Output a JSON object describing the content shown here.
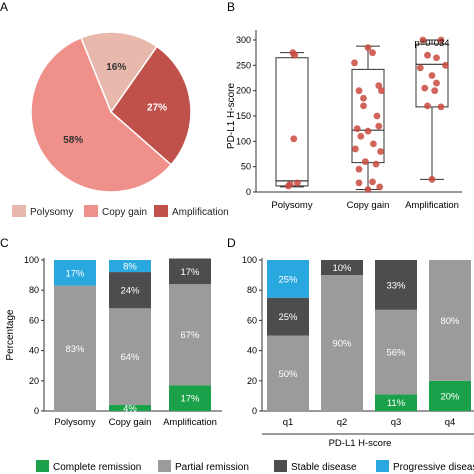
{
  "colors": {
    "polysomy": "#e8b8ac",
    "copy_gain": "#f0908a",
    "amplification": "#c0504a",
    "dot": "#c94a3e",
    "complete_remission": "#1aa14a",
    "partial_remission": "#9b9b9b",
    "stable_disease": "#4d4d4f",
    "progressive_disease": "#29a8e0"
  },
  "chart_data": [
    {
      "panel": "A",
      "type": "pie",
      "slices": [
        {
          "key": "polysomy",
          "label": "Polysomy",
          "value": 16,
          "text": "16%"
        },
        {
          "key": "amplification",
          "label": "Amplification",
          "value": 27,
          "text": "27%"
        },
        {
          "key": "copy_gain",
          "label": "Copy gain",
          "value": 58,
          "text": "58%"
        }
      ],
      "legend": [
        "Polysomy",
        "Copy gain",
        "Amplification"
      ]
    },
    {
      "panel": "B",
      "type": "scatter",
      "ylabel": "PD-L1 H-score",
      "ylim": [
        0,
        300
      ],
      "yticks": [
        0,
        50,
        100,
        150,
        200,
        250,
        300
      ],
      "categories": [
        "Polysomy",
        "Copy gain",
        "Amplification"
      ],
      "annotation": "p=0·034",
      "boxes": [
        {
          "min": 10,
          "q1": 12,
          "median": 22,
          "q3": 265,
          "max": 275
        },
        {
          "min": 5,
          "q1": 58,
          "median": 122,
          "q3": 242,
          "max": 288
        },
        {
          "min": 25,
          "q1": 168,
          "median": 252,
          "q3": 292,
          "max": 300
        }
      ],
      "points": [
        [
          [
            0.03,
            270
          ],
          [
            0.01,
            275
          ],
          [
            0.02,
            105
          ],
          [
            -0.02,
            15
          ],
          [
            0.06,
            18
          ],
          [
            -0.04,
            12
          ]
        ],
        [
          [
            -0.15,
            255
          ],
          [
            0.05,
            275
          ],
          [
            -0.1,
            200
          ],
          [
            0.15,
            200
          ],
          [
            -0.05,
            185
          ],
          [
            0.1,
            150
          ],
          [
            -0.12,
            125
          ],
          [
            0.12,
            130
          ],
          [
            0.0,
            120
          ],
          [
            -0.08,
            110
          ],
          [
            0.06,
            95
          ],
          [
            -0.14,
            85
          ],
          [
            0.14,
            80
          ],
          [
            -0.03,
            60
          ],
          [
            0.09,
            55
          ],
          [
            0.12,
            210
          ],
          [
            -0.1,
            45
          ],
          [
            0.05,
            20
          ],
          [
            -0.1,
            18
          ],
          [
            0.13,
            10
          ],
          [
            0.0,
            5
          ],
          [
            0.0,
            285
          ],
          [
            -0.05,
            170
          ]
        ],
        [
          [
            -0.1,
            300
          ],
          [
            0.1,
            300
          ],
          [
            -0.05,
            270
          ],
          [
            0.05,
            265
          ],
          [
            0.15,
            250
          ],
          [
            -0.13,
            245
          ],
          [
            0.0,
            230
          ],
          [
            0.05,
            215
          ],
          [
            -0.08,
            205
          ],
          [
            0.03,
            200
          ],
          [
            -0.05,
            170
          ],
          [
            0.1,
            168
          ],
          [
            0.0,
            25
          ]
        ]
      ]
    },
    {
      "panel": "C",
      "type": "bar",
      "stacked": true,
      "ylabel": "Percentage",
      "ylim": [
        0,
        100
      ],
      "yticks": [
        0,
        20,
        40,
        60,
        80,
        100
      ],
      "categories": [
        "Polysomy",
        "Copy gain",
        "Amplification"
      ],
      "series": [
        {
          "key": "complete_remission",
          "name": "Complete remission",
          "values": [
            0,
            4,
            17
          ],
          "labels": [
            "",
            "4%",
            "17%"
          ]
        },
        {
          "key": "partial_remission",
          "name": "Partial remission",
          "values": [
            83,
            64,
            67
          ],
          "labels": [
            "83%",
            "64%",
            "67%"
          ]
        },
        {
          "key": "stable_disease",
          "name": "Stable disease",
          "values": [
            0,
            24,
            17
          ],
          "labels": [
            "",
            "24%",
            "17%"
          ]
        },
        {
          "key": "progressive_disease",
          "name": "Progressive disease",
          "values": [
            17,
            8,
            0
          ],
          "labels": [
            "17%",
            "8%",
            ""
          ]
        }
      ]
    },
    {
      "panel": "D",
      "type": "bar",
      "stacked": true,
      "xlabel": "PD-L1 H-score",
      "ylim": [
        0,
        100
      ],
      "yticks": [
        0,
        20,
        40,
        60,
        80,
        100
      ],
      "categories": [
        "q1",
        "q2",
        "q3",
        "q4"
      ],
      "series": [
        {
          "key": "complete_remission",
          "name": "Complete remission",
          "values": [
            0,
            0,
            11,
            20
          ],
          "labels": [
            "",
            "",
            "11%",
            "20%"
          ]
        },
        {
          "key": "partial_remission",
          "name": "Partial remission",
          "values": [
            50,
            90,
            56,
            80
          ],
          "labels": [
            "50%",
            "90%",
            "56%",
            "80%"
          ]
        },
        {
          "key": "stable_disease",
          "name": "Stable disease",
          "values": [
            25,
            10,
            33,
            0
          ],
          "labels": [
            "25%",
            "10%",
            "33%",
            ""
          ]
        },
        {
          "key": "progressive_disease",
          "name": "Progressive disease",
          "values": [
            25,
            0,
            0,
            0
          ],
          "labels": [
            "25%",
            "",
            "",
            ""
          ]
        }
      ]
    }
  ],
  "panel_labels": {
    "a": "A",
    "b": "B",
    "c": "C",
    "d": "D"
  },
  "bottom_legend": [
    {
      "key": "complete_remission",
      "label": "Complete remission"
    },
    {
      "key": "partial_remission",
      "label": "Partial remission"
    },
    {
      "key": "stable_disease",
      "label": "Stable disease"
    },
    {
      "key": "progressive_disease",
      "label": "Progressive disease"
    }
  ]
}
